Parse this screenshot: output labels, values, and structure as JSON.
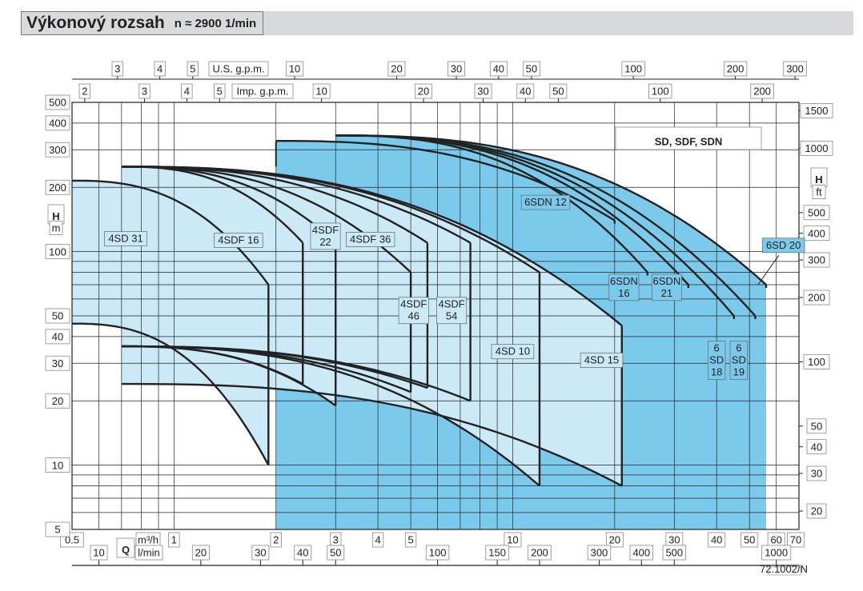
{
  "title": {
    "main": "Výkonový rozsah",
    "sub": "n ≈ 2900 1/min"
  },
  "chart_data": {
    "type": "area",
    "title": "Výkonový rozsah n ≈ 2900 1/min",
    "series_title": "SD, SDF, SDN",
    "x_scale": "log",
    "y_scale": "log",
    "xlim_m3h": [
      0.5,
      70
    ],
    "ylim_m": [
      5,
      500
    ],
    "grid": true,
    "axes": {
      "bottom_m3h": {
        "unit": "m³/h",
        "ticks": [
          0.5,
          1,
          2,
          3,
          4,
          5,
          10,
          20,
          30,
          40,
          50,
          60,
          70
        ],
        "labels": [
          "0.5",
          "1",
          "2",
          "3",
          "4",
          "5",
          "10",
          "20",
          "30",
          "40",
          "50",
          "60",
          "70"
        ]
      },
      "bottom_lmin": {
        "symbol": "Q",
        "unit": "l/min",
        "ticks_m3h": [
          0.6,
          1.2,
          1.8,
          2.4,
          3,
          6,
          9,
          12,
          18,
          24,
          30,
          60
        ],
        "labels": [
          "10",
          "20",
          "30",
          "40",
          "50",
          "100",
          "150",
          "200",
          "300",
          "400",
          "500",
          "1000"
        ]
      },
      "top_usgpm": {
        "unit": "U.S. g.p.m.",
        "ticks_m3h": [
          0.681,
          0.908,
          1.136,
          2.271,
          4.543,
          6.814,
          9.085,
          11.36,
          22.71,
          45.43,
          68.14
        ],
        "labels": [
          "3",
          "4",
          "5",
          "10",
          "20",
          "30",
          "40",
          "50",
          "100",
          "200",
          "300"
        ]
      },
      "top_impgpm": {
        "unit": "Imp. g.p.m.",
        "ticks_m3h": [
          0.545,
          0.818,
          1.091,
          1.363,
          2.726,
          5.452,
          8.178,
          10.9,
          13.63,
          27.26,
          54.52
        ],
        "labels": [
          "2",
          "3",
          "4",
          "5",
          "10",
          "20",
          "30",
          "40",
          "50",
          "100",
          "200"
        ]
      },
      "left_m": {
        "symbol": "H",
        "unit": "m",
        "ticks": [
          5,
          10,
          20,
          30,
          40,
          50,
          100,
          200,
          300,
          400,
          500
        ],
        "labels": [
          "5",
          "10",
          "20",
          "30",
          "40",
          "50",
          "100",
          "200",
          "300",
          "400",
          "500"
        ]
      },
      "right_ft": {
        "symbol": "H",
        "unit": "ft",
        "ticks_m": [
          6.096,
          9.144,
          12.19,
          15.24,
          30.48,
          60.96,
          91.44,
          121.9,
          152.4,
          304.8,
          457.2
        ],
        "labels": [
          "20",
          "30",
          "40",
          "50",
          "100",
          "200",
          "300",
          "400",
          "500",
          "1000",
          "1500"
        ]
      }
    },
    "series": [
      {
        "name": "4SD 31",
        "group": "light",
        "qmin": 0.5,
        "qmax": 1.9,
        "hmax_top": 215,
        "hmin_top": 70,
        "hmax_bot": 46,
        "hmin_bot": 10,
        "label_at": [
          0.72,
          115
        ],
        "label_lines": [
          "4SD 31"
        ]
      },
      {
        "name": "4SDF 16",
        "group": "light",
        "qmin": 0.7,
        "qmax": 2.4,
        "hmax_top": 250,
        "hmin_top": 110,
        "hmax_bot": 36,
        "hmin_bot": 24,
        "label_at": [
          1.55,
          113
        ],
        "label_lines": [
          "4SDF 16"
        ]
      },
      {
        "name": "4SDF 22",
        "group": "light",
        "qmin": 0.7,
        "qmax": 3.0,
        "hmax_top": 250,
        "hmin_top": 110,
        "hmax_bot": 36,
        "hmin_bot": 19,
        "label_at": [
          2.8,
          118
        ],
        "label_lines": [
          "4SDF",
          "22"
        ]
      },
      {
        "name": "4SDF 36",
        "group": "light",
        "qmin": 0.7,
        "qmax": 5.0,
        "hmax_top": 250,
        "hmin_top": 80,
        "hmax_bot": 36,
        "hmin_bot": 22,
        "label_at": [
          3.8,
          114
        ],
        "label_lines": [
          "4SDF 36"
        ]
      },
      {
        "name": "4SDF 46",
        "group": "light",
        "qmin": 0.7,
        "qmax": 5.6,
        "hmax_top": 250,
        "hmin_top": 110,
        "hmax_bot": 36,
        "hmin_bot": 23,
        "label_at": [
          5.1,
          53
        ],
        "label_lines": [
          "4SDF",
          "46"
        ]
      },
      {
        "name": "4SDF 54",
        "group": "light",
        "qmin": 0.7,
        "qmax": 7.5,
        "hmax_top": 250,
        "hmin_top": 110,
        "hmax_bot": 36,
        "hmin_bot": 20,
        "label_at": [
          6.6,
          53
        ],
        "label_lines": [
          "4SDF",
          "54"
        ]
      },
      {
        "name": "4SD 10",
        "group": "light",
        "qmin": 0.7,
        "qmax": 12.0,
        "hmax_top": 250,
        "hmin_top": 80,
        "hmax_bot": 36,
        "hmin_bot": 8,
        "label_at": [
          10.0,
          34
        ],
        "label_lines": [
          "4SD 10"
        ]
      },
      {
        "name": "4SD 15",
        "group": "light",
        "qmin": 0.7,
        "qmax": 21.0,
        "hmax_top": 250,
        "hmin_top": 45,
        "hmax_bot": 24,
        "hmin_bot": 8,
        "label_at": [
          18.3,
          31
        ],
        "label_lines": [
          "4SD 15"
        ]
      },
      {
        "name": "6SDN 12",
        "group": "dark",
        "qmin": 2.0,
        "qmax": 20.0,
        "hmax_top": 330,
        "hmin_top": 140,
        "hmax_bot": null,
        "hmin_bot": null,
        "label_at": [
          12.5,
          170
        ],
        "label_lines": [
          "6SDN 12"
        ]
      },
      {
        "name": "6SDN 16",
        "group": "dark",
        "qmin": 3.0,
        "qmax": 25.0,
        "hmax_top": 350,
        "hmin_top": 80,
        "hmax_bot": null,
        "hmin_bot": null,
        "label_at": [
          21.3,
          68
        ],
        "label_lines": [
          "6SDN",
          "16"
        ]
      },
      {
        "name": "6SDN 21",
        "group": "dark",
        "qmin": 3.0,
        "qmax": 33.0,
        "hmax_top": 350,
        "hmin_top": 70,
        "hmax_bot": null,
        "hmin_bot": null,
        "label_at": [
          28.5,
          68
        ],
        "label_lines": [
          "6SDN",
          "21"
        ]
      },
      {
        "name": "6 SD 18",
        "group": "dark",
        "qmin": 3.0,
        "qmax": 45.0,
        "hmax_top": 350,
        "hmin_top": 50,
        "hmax_bot": null,
        "hmin_bot": null,
        "label_at": [
          40.0,
          31
        ],
        "label_lines": [
          "6",
          "SD",
          "18"
        ]
      },
      {
        "name": "6 SD 19",
        "group": "dark",
        "qmin": 3.0,
        "qmax": 52.0,
        "hmax_top": 350,
        "hmin_top": 50,
        "hmax_bot": null,
        "hmin_bot": null,
        "label_at": [
          46.5,
          31
        ],
        "label_lines": [
          "6",
          "SD",
          "19"
        ]
      },
      {
        "name": "6SD 20",
        "group": "dark",
        "qmin": 3.0,
        "qmax": 56.0,
        "hmax_top": 350,
        "hmin_top": 70,
        "hmax_bot": null,
        "hmin_bot": null,
        "label_at": [
          63.0,
          107
        ],
        "label_lines": [
          "6SD 20"
        ]
      }
    ],
    "colors": {
      "light": "#cce9f7",
      "dark": "#7ccaeb",
      "line": "#222222",
      "grid": "#222222"
    },
    "footnote": "72.1002/N"
  }
}
